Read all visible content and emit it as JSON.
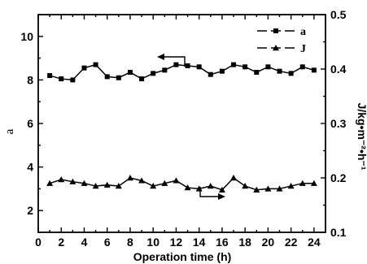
{
  "chart_data": {
    "type": "line",
    "xlabel": "Operation time (h)",
    "ylabel_left": "a",
    "ylabel_right": "J/kg•m⁻²•h⁻¹",
    "xlim": [
      0,
      25
    ],
    "ylim_left": [
      1,
      11
    ],
    "ylim_right": [
      0.1,
      0.5
    ],
    "x_ticks": [
      0,
      2,
      4,
      6,
      8,
      10,
      12,
      14,
      16,
      18,
      20,
      22,
      24
    ],
    "y_left_ticks": [
      2,
      4,
      6,
      8,
      10
    ],
    "y_right_ticks": [
      0.1,
      0.2,
      0.3,
      0.4,
      0.5
    ],
    "legend_position": "top-right",
    "grid": false,
    "series": [
      {
        "name": "a",
        "axis": "left",
        "marker": "square",
        "x": [
          1,
          2,
          3,
          4,
          5,
          6,
          7,
          8,
          9,
          10,
          11,
          12,
          13,
          14,
          15,
          16,
          17,
          18,
          19,
          20,
          21,
          22,
          23,
          24
        ],
        "values": [
          8.2,
          8.05,
          8.0,
          8.55,
          8.7,
          8.15,
          8.1,
          8.35,
          8.05,
          8.3,
          8.45,
          8.7,
          8.65,
          8.6,
          8.25,
          8.4,
          8.7,
          8.6,
          8.35,
          8.6,
          8.4,
          8.3,
          8.6,
          8.45
        ]
      },
      {
        "name": "J",
        "axis": "right",
        "marker": "triangle",
        "x": [
          1,
          2,
          3,
          4,
          5,
          6,
          7,
          8,
          9,
          10,
          11,
          12,
          13,
          14,
          15,
          16,
          17,
          18,
          19,
          20,
          21,
          22,
          23,
          24
        ],
        "values": [
          0.19,
          0.197,
          0.193,
          0.19,
          0.185,
          0.187,
          0.185,
          0.2,
          0.195,
          0.185,
          0.19,
          0.195,
          0.182,
          0.18,
          0.185,
          0.178,
          0.2,
          0.185,
          0.178,
          0.18,
          0.18,
          0.185,
          0.19,
          0.19
        ]
      }
    ]
  }
}
